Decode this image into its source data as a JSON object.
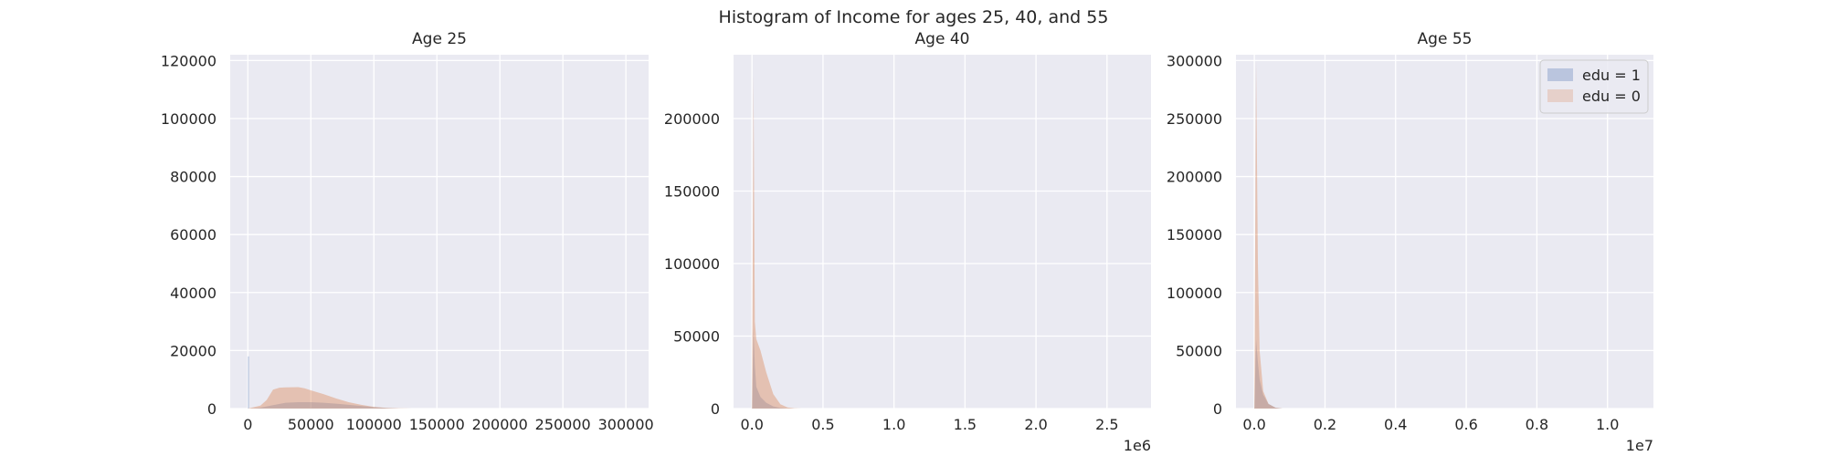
{
  "suptitle": "Histogram of Income for ages 25, 40, and 55",
  "colors": {
    "background": "#eaeaf2",
    "grid": "#ffffff",
    "edu1": "#4c72b0",
    "edu0": "#dd8452",
    "overlap": "#a8a27a",
    "text": "#262626"
  },
  "chart_data": [
    {
      "type": "area",
      "title": "Age 25",
      "xlim": [
        -14000,
        318000
      ],
      "ylim": [
        0,
        122000
      ],
      "xticks": [
        0,
        50000,
        100000,
        150000,
        200000,
        250000,
        300000
      ],
      "xtick_labels": [
        "0",
        "50000",
        "100000",
        "150000",
        "200000",
        "250000",
        "300000"
      ],
      "yticks": [
        0,
        20000,
        40000,
        60000,
        80000,
        100000,
        120000
      ],
      "ytick_labels": [
        "0",
        "20000",
        "40000",
        "60000",
        "80000",
        "100000",
        "120000"
      ],
      "offset_label": "",
      "legend": false,
      "series": [
        {
          "name": "edu = 1",
          "color": "#4c72b0",
          "x": [
            0,
            0,
            1000,
            1000,
            10000,
            20000,
            30000,
            40000,
            50000,
            60000,
            70000,
            80000,
            90000,
            100000,
            110000,
            120000
          ],
          "y": [
            0,
            18000,
            18000,
            0,
            300,
            1200,
            2000,
            2200,
            2200,
            2000,
            1700,
            1300,
            900,
            500,
            200,
            0
          ]
        },
        {
          "name": "edu = 0",
          "color": "#dd8452",
          "x": [
            0,
            10000,
            15000,
            20000,
            25000,
            30000,
            40000,
            45000,
            50000,
            60000,
            70000,
            80000,
            90000,
            100000,
            110000,
            120000,
            130000
          ],
          "y": [
            0,
            1000,
            3000,
            6500,
            7200,
            7300,
            7400,
            7000,
            6300,
            5000,
            3500,
            2200,
            1300,
            600,
            250,
            80,
            0
          ]
        }
      ]
    },
    {
      "type": "area",
      "title": "Age 40",
      "xlim": [
        -130000,
        2810000
      ],
      "ylim": [
        0,
        244000
      ],
      "xticks": [
        0,
        500000,
        1000000,
        1500000,
        2000000,
        2500000
      ],
      "xtick_labels": [
        "0.0",
        "0.5",
        "1.0",
        "1.5",
        "2.0",
        "2.5"
      ],
      "yticks": [
        0,
        50000,
        100000,
        150000,
        200000
      ],
      "ytick_labels": [
        "0",
        "50000",
        "100000",
        "150000",
        "200000"
      ],
      "offset_label": "1e6",
      "legend": false,
      "series": [
        {
          "name": "edu = 1",
          "color": "#4c72b0",
          "x": [
            0,
            10000,
            20000,
            30000,
            60000,
            100000,
            150000,
            200000,
            250000,
            300000
          ],
          "y": [
            0,
            55000,
            30000,
            15000,
            8000,
            4000,
            1500,
            500,
            100,
            0
          ]
        },
        {
          "name": "edu = 0",
          "color": "#dd8452",
          "x": [
            0,
            10000,
            20000,
            30000,
            60000,
            100000,
            150000,
            200000,
            250000,
            300000,
            350000
          ],
          "y": [
            0,
            230000,
            60000,
            48000,
            40000,
            25000,
            10000,
            3000,
            800,
            200,
            0
          ]
        }
      ]
    },
    {
      "type": "area",
      "title": "Age 55",
      "xlim": [
        -520000,
        11300000
      ],
      "ylim": [
        0,
        305000
      ],
      "xticks": [
        0,
        2000000,
        4000000,
        6000000,
        8000000,
        10000000
      ],
      "xtick_labels": [
        "0.0",
        "0.2",
        "0.4",
        "0.6",
        "0.8",
        "1.0"
      ],
      "yticks": [
        0,
        50000,
        100000,
        150000,
        200000,
        250000,
        300000
      ],
      "ytick_labels": [
        "0",
        "50000",
        "100000",
        "150000",
        "200000",
        "250000",
        "300000"
      ],
      "offset_label": "1e7",
      "legend": true,
      "legend_position": "upper right",
      "series": [
        {
          "name": "edu = 1",
          "color": "#4c72b0",
          "x": [
            0,
            50000,
            100000,
            150000,
            250000,
            400000,
            600000,
            800000
          ],
          "y": [
            0,
            60000,
            40000,
            25000,
            12000,
            4000,
            800,
            0
          ]
        },
        {
          "name": "edu = 0",
          "color": "#dd8452",
          "x": [
            0,
            50000,
            100000,
            150000,
            250000,
            400000,
            600000,
            800000
          ],
          "y": [
            0,
            300000,
            125000,
            50000,
            15000,
            4000,
            800,
            0
          ]
        }
      ]
    }
  ]
}
